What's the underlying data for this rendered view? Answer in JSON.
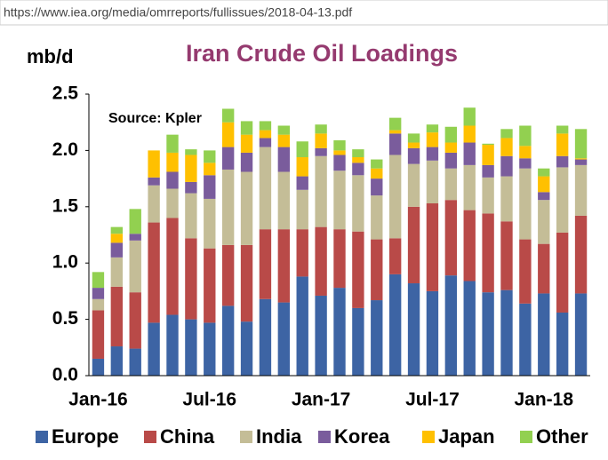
{
  "url": "https://www.iea.org/media/omrreports/fullissues/2018-04-13.pdf",
  "chart_data": {
    "type": "stacked_bar",
    "title": "Iran Crude Oil Loadings",
    "y_label": "mb/d",
    "annotation": "Source: Kpler",
    "categories": [
      "Jan-16",
      null,
      null,
      null,
      null,
      null,
      "Jul-16",
      null,
      null,
      null,
      null,
      null,
      "Jan-17",
      null,
      null,
      null,
      null,
      null,
      "Jul-17",
      null,
      null,
      null,
      null,
      null,
      "Jan-18",
      null,
      null
    ],
    "series": [
      {
        "name": "Europe",
        "color": "#3d64a4",
        "values": [
          0.15,
          0.26,
          0.24,
          0.47,
          0.54,
          0.5,
          0.47,
          0.62,
          0.48,
          0.68,
          0.65,
          0.88,
          0.71,
          0.78,
          0.6,
          0.67,
          0.9,
          0.82,
          0.75,
          0.89,
          0.84,
          0.74,
          0.76,
          0.64,
          0.73,
          0.56,
          0.73
        ]
      },
      {
        "name": "China",
        "color": "#b94a48",
        "values": [
          0.43,
          0.53,
          0.5,
          0.89,
          0.86,
          0.72,
          0.66,
          0.54,
          0.68,
          0.62,
          0.65,
          0.42,
          0.61,
          0.52,
          0.68,
          0.54,
          0.32,
          0.68,
          0.78,
          0.67,
          0.63,
          0.7,
          0.61,
          0.57,
          0.44,
          0.71,
          0.69
        ]
      },
      {
        "name": "India",
        "color": "#c4bd97",
        "values": [
          0.1,
          0.26,
          0.46,
          0.33,
          0.26,
          0.4,
          0.44,
          0.67,
          0.65,
          0.73,
          0.51,
          0.35,
          0.63,
          0.52,
          0.5,
          0.39,
          0.74,
          0.38,
          0.38,
          0.28,
          0.4,
          0.32,
          0.4,
          0.63,
          0.39,
          0.58,
          0.45
        ]
      },
      {
        "name": "Korea",
        "color": "#7a5c9c",
        "values": [
          0.1,
          0.13,
          0.06,
          0.07,
          0.15,
          0.1,
          0.21,
          0.2,
          0.17,
          0.08,
          0.22,
          0.12,
          0.07,
          0.14,
          0.11,
          0.15,
          0.19,
          0.14,
          0.12,
          0.14,
          0.2,
          0.11,
          0.18,
          0.09,
          0.07,
          0.1,
          0.05
        ]
      },
      {
        "name": "Japan",
        "color": "#ffc000",
        "values": [
          0,
          0.08,
          0,
          0.24,
          0.17,
          0.24,
          0.11,
          0.22,
          0.16,
          0.07,
          0.11,
          0.17,
          0.13,
          0.04,
          0.05,
          0.09,
          0.03,
          0.05,
          0.13,
          0.09,
          0.15,
          0.18,
          0.16,
          0.11,
          0.14,
          0.2,
          0.01
        ]
      },
      {
        "name": "Other",
        "color": "#92d050",
        "values": [
          0.14,
          0.06,
          0.22,
          0,
          0.16,
          0.05,
          0.11,
          0.12,
          0.12,
          0.08,
          0.08,
          0.14,
          0.08,
          0.09,
          0.07,
          0.08,
          0.11,
          0.08,
          0.07,
          0.14,
          0.16,
          0.01,
          0.08,
          0.18,
          0.07,
          0.07,
          0.26
        ]
      }
    ],
    "ylim": [
      0,
      2.5
    ],
    "yticks": [
      {
        "value": 0,
        "label": "0.0"
      },
      0.5,
      {
        "value": 1,
        "label": "1.0"
      },
      1.5,
      {
        "value": 2,
        "label": "2.0"
      },
      2.5
    ],
    "grid": false,
    "legend": "bottom"
  }
}
